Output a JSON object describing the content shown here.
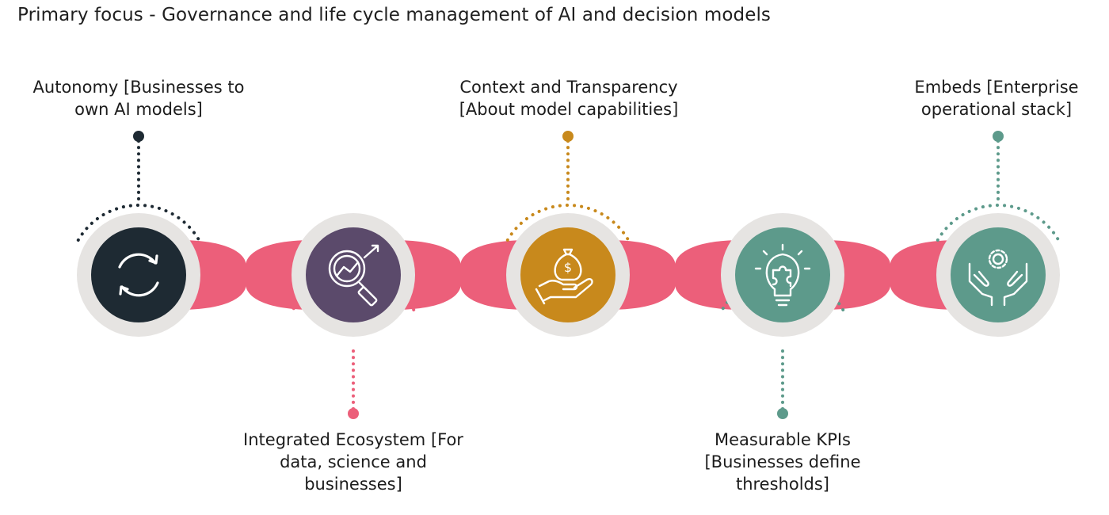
{
  "title": "Primary focus - Governance and life cycle management of AI and decision models",
  "steps": [
    {
      "label": "Autonomy [Businesses to own AI models]",
      "lines": [
        "Autonomy [Businesses to",
        "own AI models]"
      ],
      "position": "top",
      "color": "#1e2a33",
      "icon": "refresh-cycle-icon"
    },
    {
      "label": "Integrated Ecosystem [For data, science and businesses]",
      "lines": [
        "Integrated Ecosystem [For",
        "data, science and",
        "businesses]"
      ],
      "position": "bottom",
      "color": "#5b4a6b",
      "icon": "magnifier-analytics-icon"
    },
    {
      "label": "Context and Transparency [About model capabilities]",
      "lines": [
        "Context and Transparency",
        "[About model capabilities]"
      ],
      "position": "top",
      "color": "#c8891c",
      "icon": "money-bag-hand-icon"
    },
    {
      "label": "Measurable KPIs [Businesses define thresholds]",
      "lines": [
        "Measurable KPIs",
        "[Businesses define",
        "thresholds]"
      ],
      "position": "bottom",
      "color": "#5d9a8b",
      "icon": "lightbulb-puzzle-icon"
    },
    {
      "label": "Embeds [Enterprise operational stack]",
      "lines": [
        "Embeds [Enterprise",
        "operational stack]"
      ],
      "position": "top",
      "color": "#5d9a8b",
      "icon": "hands-gear-icon"
    }
  ],
  "colors": {
    "connector": "#ec5f7a",
    "ring": "#e6e4e2",
    "icon_stroke": "#ffffff"
  }
}
